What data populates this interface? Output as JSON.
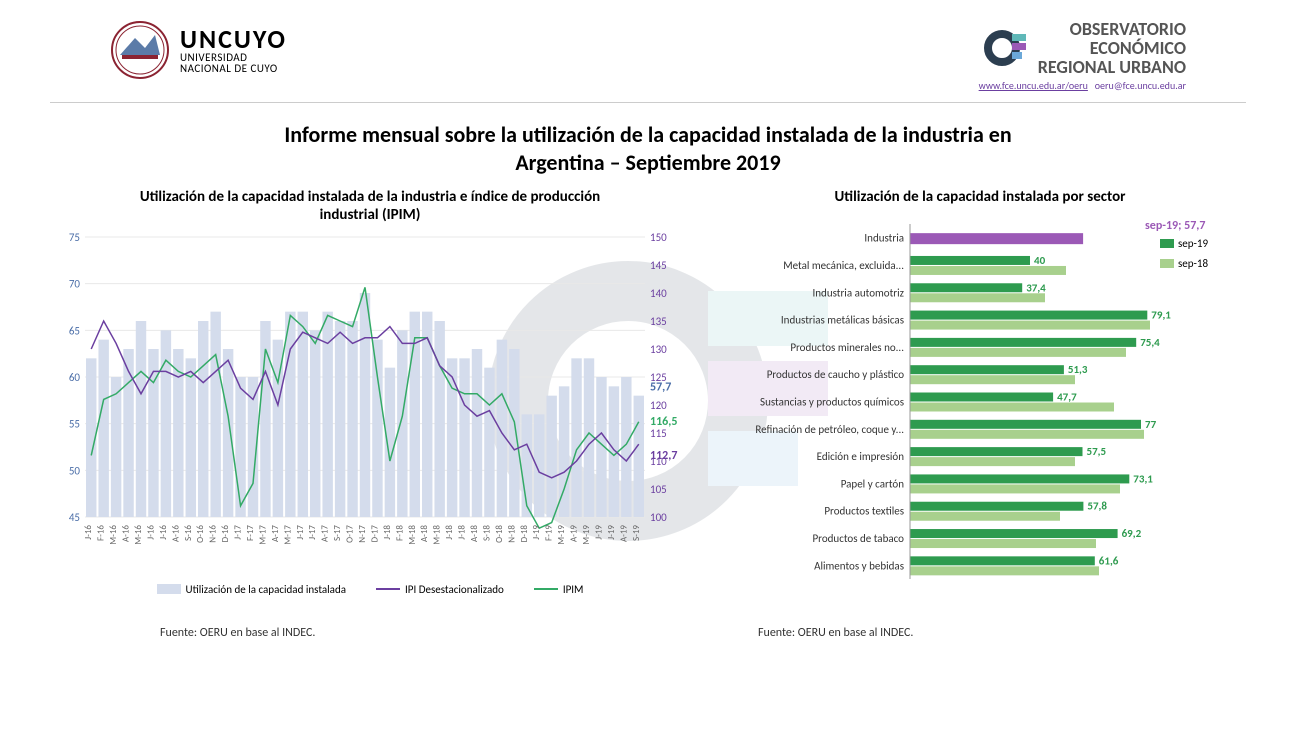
{
  "header": {
    "left_logo_big": "UNCUYO",
    "left_logo_line1": "UNIVERSIDAD",
    "left_logo_line2": "NACIONAL DE CUYO",
    "right_line1": "OBSERVATORIO",
    "right_line2": "ECONÓMICO",
    "right_line3": "REGIONAL URBANO",
    "link1": "www.fce.uncu.edu.ar/oeru",
    "link2": "oeru@fce.uncu.edu.ar"
  },
  "main_title_l1": "Informe mensual sobre la utilización de la capacidad instalada de la industria en",
  "main_title_l2": "Argentina – Septiembre 2019",
  "chart_left": {
    "title_l1": "Utilización de la capacidad instalada de la industria e índice de producción",
    "title_l2": "industrial (IPIM)",
    "type": "combo",
    "y_left": {
      "min": 45,
      "max": 75,
      "step": 5,
      "color": "#4a6da7"
    },
    "y_right": {
      "min": 100,
      "max": 150,
      "step": 5,
      "color": "#6b3fa0"
    },
    "x_labels": [
      "J-16",
      "F-16",
      "M-16",
      "A-16",
      "M-16",
      "J-16",
      "J-16",
      "A-16",
      "S-16",
      "O-16",
      "N-16",
      "D-16",
      "J-17",
      "F-17",
      "M-17",
      "A-17",
      "M-17",
      "J-17",
      "J-17",
      "A-17",
      "S-17",
      "O-17",
      "N-17",
      "D-17",
      "J-18",
      "F-18",
      "M-18",
      "A-18",
      "M-18",
      "J-18",
      "J-18",
      "A-18",
      "S-18",
      "O-18",
      "N-18",
      "D-18",
      "J-19",
      "F-19",
      "M-19",
      "A-19",
      "M-19",
      "J-19",
      "J-19",
      "A-19",
      "S-19"
    ],
    "bars": {
      "color": "#d4dcec",
      "values": [
        62,
        64,
        60,
        63,
        66,
        63,
        65,
        63,
        62,
        66,
        67,
        63,
        60,
        60,
        66,
        64,
        67,
        67,
        65,
        67,
        66,
        66,
        69,
        64,
        61,
        65,
        67,
        67,
        66,
        62,
        62,
        63,
        61,
        64,
        63,
        56,
        56,
        58,
        59,
        62,
        62,
        60,
        59,
        60,
        58
      ]
    },
    "line_ipi": {
      "color": "#6b3fa0",
      "width": 1.5,
      "values": [
        130,
        135,
        131,
        126,
        122,
        126,
        126,
        125,
        126,
        124,
        126,
        128,
        123,
        121,
        126,
        120,
        130,
        133,
        132,
        131,
        133,
        131,
        132,
        132,
        134,
        131,
        131,
        132,
        127,
        125,
        120,
        118,
        119,
        115,
        112,
        113,
        108,
        107,
        108,
        110,
        113,
        115,
        112,
        110,
        113
      ],
      "last_label": "112,7"
    },
    "line_ipim": {
      "color": "#33aa66",
      "width": 1.5,
      "values": [
        111,
        121,
        122,
        124,
        126,
        124,
        128,
        126,
        125,
        127,
        129,
        118,
        102,
        106,
        130,
        124,
        136,
        134,
        131,
        136,
        135,
        134,
        141,
        125,
        110,
        118,
        132,
        132,
        127,
        123,
        122,
        122,
        120,
        122,
        117,
        102,
        98,
        99,
        105,
        112,
        115,
        113,
        111,
        113,
        117
      ],
      "last_label": "116,5"
    },
    "callout_577": "57,7",
    "legend": {
      "bar": "Utilización de la capacidad instalada",
      "ipi": "IPI Desestacionalizado",
      "ipim": "IPIM"
    },
    "source": "Fuente: OERU en base al INDEC."
  },
  "chart_right": {
    "title": "Utilización de la capacidad instalada por sector",
    "type": "grouped-horizontal-bar",
    "x": {
      "min": 0,
      "max": 90
    },
    "legend": {
      "s19": "sep-19",
      "s18": "sep-18"
    },
    "colors": {
      "s19": "#2e9b4f",
      "s18": "#a8d08d",
      "industria": "#9b59b6"
    },
    "header_label": "sep-19; 57,7",
    "rows": [
      {
        "label": "Industria",
        "v19": 57.7,
        "v18": null,
        "display": "57,7",
        "highlight": true
      },
      {
        "label": "Metal mecánica, excluida...",
        "v19": 40,
        "v18": 52,
        "display": "40"
      },
      {
        "label": "Industria automotriz",
        "v19": 37.4,
        "v18": 45,
        "display": "37,4"
      },
      {
        "label": "Industrias metálicas básicas",
        "v19": 79.1,
        "v18": 80,
        "display": "79,1"
      },
      {
        "label": "Productos minerales no...",
        "v19": 75.4,
        "v18": 72,
        "display": "75,4"
      },
      {
        "label": "Productos de caucho y plástico",
        "v19": 51.3,
        "v18": 55,
        "display": "51,3"
      },
      {
        "label": "Sustancias y productos químicos",
        "v19": 47.7,
        "v18": 68,
        "display": "47,7"
      },
      {
        "label": "Refinación de petróleo, coque y...",
        "v19": 77,
        "v18": 78,
        "display": "77"
      },
      {
        "label": "Edición e impresión",
        "v19": 57.5,
        "v18": 55,
        "display": "57,5"
      },
      {
        "label": "Papel y cartón",
        "v19": 73.1,
        "v18": 70,
        "display": "73,1"
      },
      {
        "label": "Productos textiles",
        "v19": 57.8,
        "v18": 50,
        "display": "57,8"
      },
      {
        "label": "Productos de tabaco",
        "v19": 69.2,
        "v18": 62,
        "display": "69,2"
      },
      {
        "label": "Alimentos y bebidas",
        "v19": 61.6,
        "v18": 63,
        "display": "61,6"
      }
    ],
    "source": "Fuente: OERU en base al INDEC."
  }
}
